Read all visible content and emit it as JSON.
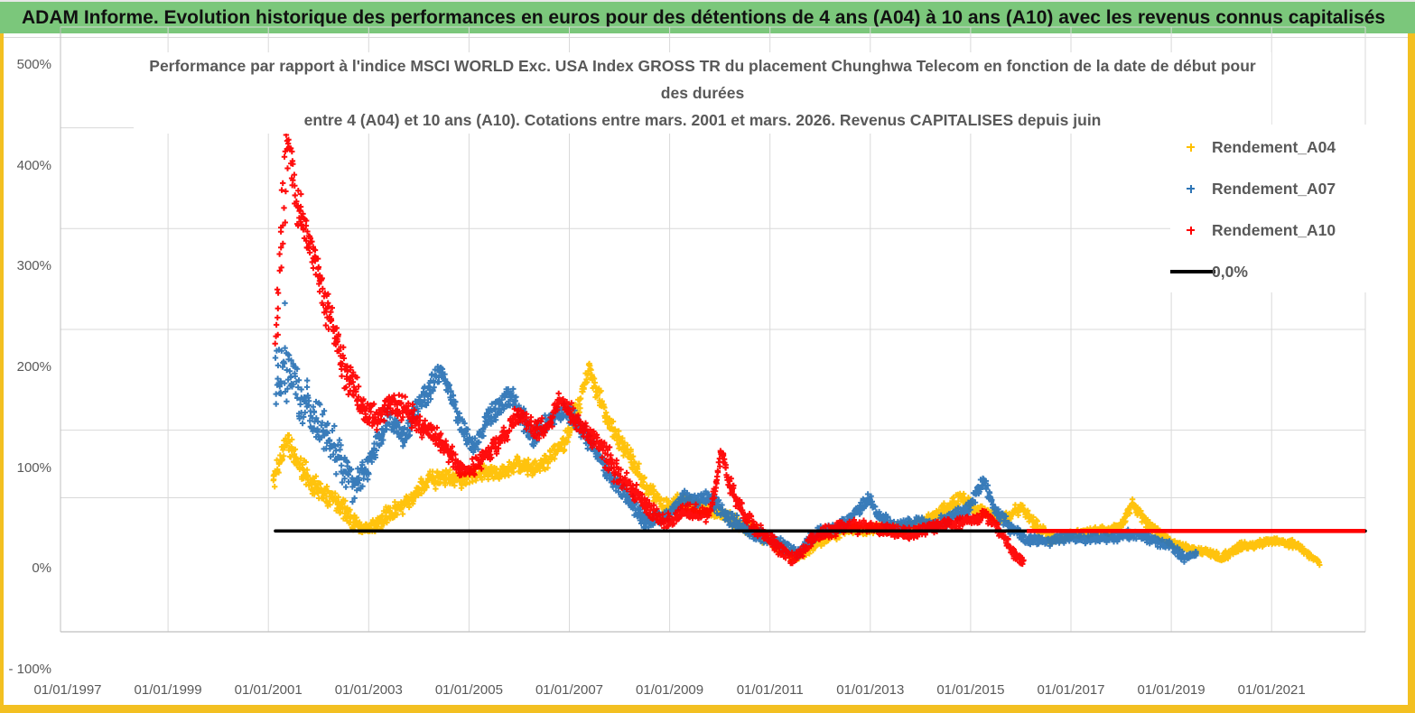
{
  "header": {
    "title": "ADAM Informe. Evolution historique des performances en euros pour des détentions de 4 ans (A04) à 10 ans (A10) avec les revenus connus capitalisés"
  },
  "colors": {
    "header_green": "#7bc77b",
    "frame_yellow": "#f3c021",
    "grid": "#d9d9d9",
    "axis_border": "#bfbfbf",
    "text_gray": "#595959",
    "series_a04": "#FFC000",
    "series_a07": "#2E75B6",
    "series_a10": "#FF0000",
    "zero_line": "#000000"
  },
  "chart_data": {
    "type": "scatter",
    "title_lines": [
      "Performance par rapport à l'indice MSCI WORLD Exc. USA Index GROSS TR  du placement Chunghwa Telecom  en fonction de la date de début pour",
      "des durées",
      "entre 4 (A04) et 10 ans (A10). Cotations entre mars. 2001 et mars. 2026. Revenus CAPITALISES depuis juin"
    ],
    "x_axis": {
      "labels": [
        "01/01/1997",
        "01/01/1999",
        "01/01/2001",
        "01/01/2003",
        "01/01/2005",
        "01/01/2007",
        "01/01/2009",
        "01/01/2011",
        "01/01/2013",
        "01/01/2015",
        "01/01/2017",
        "01/01/2019",
        "01/01/2021"
      ],
      "label_years": [
        1997,
        1999,
        2001,
        2003,
        2005,
        2007,
        2009,
        2011,
        2013,
        2015,
        2017,
        2019,
        2021
      ],
      "min_year": 1997,
      "max_year": 2022.9,
      "grid": true
    },
    "y_axis": {
      "labels": [
        "500%",
        "400%",
        "300%",
        "200%",
        "100%",
        "0%",
        "- 100%"
      ],
      "label_values": [
        500,
        400,
        300,
        200,
        100,
        0,
        -100
      ],
      "min": -100,
      "max": 500,
      "unit": "%",
      "grid": true,
      "extra_gridline_value": 33,
      "zero_gridline_hidden": true
    },
    "legend": {
      "position": "right",
      "items": [
        {
          "label": "Rendement_A04",
          "color": "#FFC000",
          "type": "marker"
        },
        {
          "label": "Rendement_A07",
          "color": "#2E75B6",
          "type": "marker"
        },
        {
          "label": "Rendement_A10",
          "color": "#FF0000",
          "type": "marker"
        },
        {
          "label": "0,0%",
          "color": "#000000",
          "type": "line"
        }
      ]
    },
    "zero_line": {
      "value": 0,
      "from_year": 2001.14,
      "to_year": 2022.87,
      "color": "#000000"
    },
    "a10_zero_segment": {
      "value": 0,
      "from_year": 2016.12,
      "to_year": 2022.87,
      "color": "#FF0000",
      "note_visible": false
    },
    "series": [
      {
        "name": "Rendement_A04",
        "color": "#FFC000",
        "marker": "plus",
        "seed": 11,
        "anchors": [
          [
            2001.1,
            48,
            16
          ],
          [
            2001.35,
            92,
            14
          ],
          [
            2001.55,
            72,
            14
          ],
          [
            2001.8,
            52,
            13
          ],
          [
            2002.05,
            40,
            12
          ],
          [
            2002.35,
            32,
            13
          ],
          [
            2002.65,
            12,
            10
          ],
          [
            2002.9,
            2,
            8
          ],
          [
            2003.15,
            5,
            9
          ],
          [
            2003.45,
            20,
            10
          ],
          [
            2003.8,
            27,
            10
          ],
          [
            2004.15,
            50,
            10
          ],
          [
            2004.5,
            53,
            10
          ],
          [
            2004.85,
            50,
            9
          ],
          [
            2005.2,
            58,
            9
          ],
          [
            2005.6,
            57,
            9
          ],
          [
            2005.95,
            66,
            9
          ],
          [
            2006.3,
            62,
            9
          ],
          [
            2006.6,
            72,
            10
          ],
          [
            2006.9,
            88,
            10
          ],
          [
            2007.15,
            118,
            13
          ],
          [
            2007.4,
            160,
            12
          ],
          [
            2007.6,
            132,
            13
          ],
          [
            2007.85,
            102,
            11
          ],
          [
            2008.05,
            85,
            10
          ],
          [
            2008.28,
            68,
            13
          ],
          [
            2008.5,
            45,
            10
          ],
          [
            2008.7,
            36,
            9
          ],
          [
            2008.9,
            24,
            8
          ],
          [
            2009.15,
            29,
            8
          ],
          [
            2009.5,
            26,
            8
          ],
          [
            2009.8,
            20,
            8
          ],
          [
            2010.1,
            15,
            8
          ],
          [
            2010.4,
            6,
            8
          ],
          [
            2010.7,
            0,
            8
          ],
          [
            2011.0,
            -10,
            7
          ],
          [
            2011.3,
            -20,
            7
          ],
          [
            2011.55,
            -27,
            6
          ],
          [
            2011.85,
            -14,
            7
          ],
          [
            2012.15,
            -6,
            7
          ],
          [
            2012.5,
            1,
            6
          ],
          [
            2012.9,
            0,
            6
          ],
          [
            2013.3,
            3,
            6
          ],
          [
            2013.7,
            2,
            6
          ],
          [
            2014.1,
            10,
            7
          ],
          [
            2014.5,
            22,
            7
          ],
          [
            2014.8,
            33,
            7
          ],
          [
            2015.1,
            22,
            7
          ],
          [
            2015.45,
            14,
            7
          ],
          [
            2015.75,
            13,
            7
          ],
          [
            2016.0,
            24,
            7
          ],
          [
            2016.3,
            6,
            7
          ],
          [
            2016.6,
            -8,
            6
          ],
          [
            2017.0,
            -4,
            5
          ],
          [
            2017.4,
            -1,
            5
          ],
          [
            2017.8,
            1,
            5
          ],
          [
            2018.05,
            9,
            6
          ],
          [
            2018.22,
            28,
            6
          ],
          [
            2018.5,
            8,
            6
          ],
          [
            2018.8,
            -5,
            5
          ],
          [
            2019.1,
            -13,
            5
          ],
          [
            2019.4,
            -18,
            5
          ],
          [
            2019.7,
            -20,
            5
          ],
          [
            2020.0,
            -27,
            5
          ],
          [
            2020.35,
            -16,
            5
          ],
          [
            2020.8,
            -12,
            5
          ],
          [
            2021.2,
            -10,
            5
          ],
          [
            2021.5,
            -14,
            5
          ],
          [
            2021.8,
            -26,
            4
          ],
          [
            2021.95,
            -31,
            3
          ]
        ],
        "outliers": []
      },
      {
        "name": "Rendement_A07",
        "color": "#2E75B6",
        "marker": "plus",
        "seed": 22,
        "anchors": [
          [
            2001.15,
            160,
            45
          ],
          [
            2001.4,
            163,
            38
          ],
          [
            2001.6,
            140,
            33
          ],
          [
            2001.8,
            122,
            28
          ],
          [
            2002.0,
            106,
            25
          ],
          [
            2002.2,
            93,
            25
          ],
          [
            2002.45,
            70,
            24
          ],
          [
            2002.7,
            46,
            20
          ],
          [
            2002.9,
            58,
            18
          ],
          [
            2003.1,
            76,
            16
          ],
          [
            2003.35,
            112,
            14
          ],
          [
            2003.7,
            92,
            13
          ],
          [
            2004.05,
            130,
            13
          ],
          [
            2004.45,
            160,
            13
          ],
          [
            2004.9,
            97,
            12
          ],
          [
            2005.1,
            82,
            10
          ],
          [
            2005.4,
            115,
            12
          ],
          [
            2005.85,
            135,
            14
          ],
          [
            2006.25,
            92,
            12
          ],
          [
            2006.6,
            108,
            11
          ],
          [
            2006.9,
            120,
            10
          ],
          [
            2007.2,
            105,
            11
          ],
          [
            2007.6,
            72,
            10
          ],
          [
            2008.0,
            42,
            12
          ],
          [
            2008.5,
            10,
            10
          ],
          [
            2008.95,
            16,
            8
          ],
          [
            2009.3,
            33,
            9
          ],
          [
            2009.8,
            32,
            9
          ],
          [
            2010.2,
            12,
            9
          ],
          [
            2010.7,
            -2,
            8
          ],
          [
            2011.3,
            -15,
            7
          ],
          [
            2011.55,
            -22,
            7
          ],
          [
            2011.9,
            -4,
            7
          ],
          [
            2012.5,
            7,
            7
          ],
          [
            2012.97,
            32,
            7
          ],
          [
            2013.2,
            12,
            7
          ],
          [
            2013.5,
            5,
            7
          ],
          [
            2013.8,
            8,
            7
          ],
          [
            2014.2,
            6,
            7
          ],
          [
            2014.6,
            12,
            7
          ],
          [
            2015.0,
            25,
            8
          ],
          [
            2015.25,
            50,
            7
          ],
          [
            2015.5,
            20,
            9
          ],
          [
            2015.8,
            2,
            8
          ],
          [
            2016.1,
            -8,
            6
          ],
          [
            2016.5,
            -10,
            6
          ],
          [
            2017.0,
            -6,
            6
          ],
          [
            2017.5,
            -8,
            6
          ],
          [
            2018.0,
            -5,
            6
          ],
          [
            2018.3,
            -3,
            6
          ],
          [
            2018.6,
            -8,
            6
          ],
          [
            2019.0,
            -15,
            6
          ],
          [
            2019.25,
            -27,
            5
          ],
          [
            2019.5,
            -22,
            4
          ]
        ],
        "outliers": [
          [
            2001.33,
            226
          ]
        ]
      },
      {
        "name": "Rendement_A10",
        "color": "#FF0000",
        "marker": "plus",
        "seed": 33,
        "anchors": [
          [
            2001.15,
            170,
            60
          ],
          [
            2001.3,
            330,
            55
          ],
          [
            2001.42,
            392,
            22
          ],
          [
            2001.55,
            330,
            35
          ],
          [
            2001.75,
            295,
            28
          ],
          [
            2001.95,
            262,
            20
          ],
          [
            2002.15,
            225,
            25
          ],
          [
            2002.35,
            185,
            22
          ],
          [
            2002.55,
            155,
            20
          ],
          [
            2002.75,
            138,
            18
          ],
          [
            2002.95,
            118,
            16
          ],
          [
            2003.15,
            112,
            14
          ],
          [
            2003.45,
            125,
            14
          ],
          [
            2003.75,
            122,
            13
          ],
          [
            2004.0,
            105,
            12
          ],
          [
            2004.3,
            95,
            12
          ],
          [
            2004.6,
            78,
            12
          ],
          [
            2004.85,
            60,
            10
          ],
          [
            2005.1,
            63,
            10
          ],
          [
            2005.4,
            78,
            11
          ],
          [
            2005.7,
            95,
            11
          ],
          [
            2006.0,
            118,
            11
          ],
          [
            2006.3,
            100,
            11
          ],
          [
            2006.6,
            105,
            10
          ],
          [
            2006.8,
            130,
            10
          ],
          [
            2007.05,
            115,
            12
          ],
          [
            2007.3,
            103,
            11
          ],
          [
            2007.65,
            80,
            16
          ],
          [
            2008.0,
            55,
            14
          ],
          [
            2008.45,
            30,
            11
          ],
          [
            2008.9,
            8,
            9
          ],
          [
            2009.3,
            20,
            9
          ],
          [
            2009.8,
            15,
            9
          ],
          [
            2010.04,
            78,
            9
          ],
          [
            2010.18,
            48,
            11
          ],
          [
            2010.5,
            15,
            9
          ],
          [
            2010.9,
            -5,
            9
          ],
          [
            2011.2,
            -18,
            8
          ],
          [
            2011.5,
            -28,
            7
          ],
          [
            2011.85,
            -8,
            8
          ],
          [
            2012.4,
            5,
            8
          ],
          [
            2013.1,
            3,
            7
          ],
          [
            2013.8,
            -3,
            7
          ],
          [
            2014.3,
            5,
            7
          ],
          [
            2014.8,
            8,
            7
          ],
          [
            2015.3,
            16,
            7
          ],
          [
            2015.6,
            -2,
            8
          ],
          [
            2015.9,
            -25,
            6
          ],
          [
            2016.05,
            -30,
            4
          ]
        ],
        "outliers": [
          [
            2001.39,
            418
          ]
        ]
      }
    ]
  }
}
